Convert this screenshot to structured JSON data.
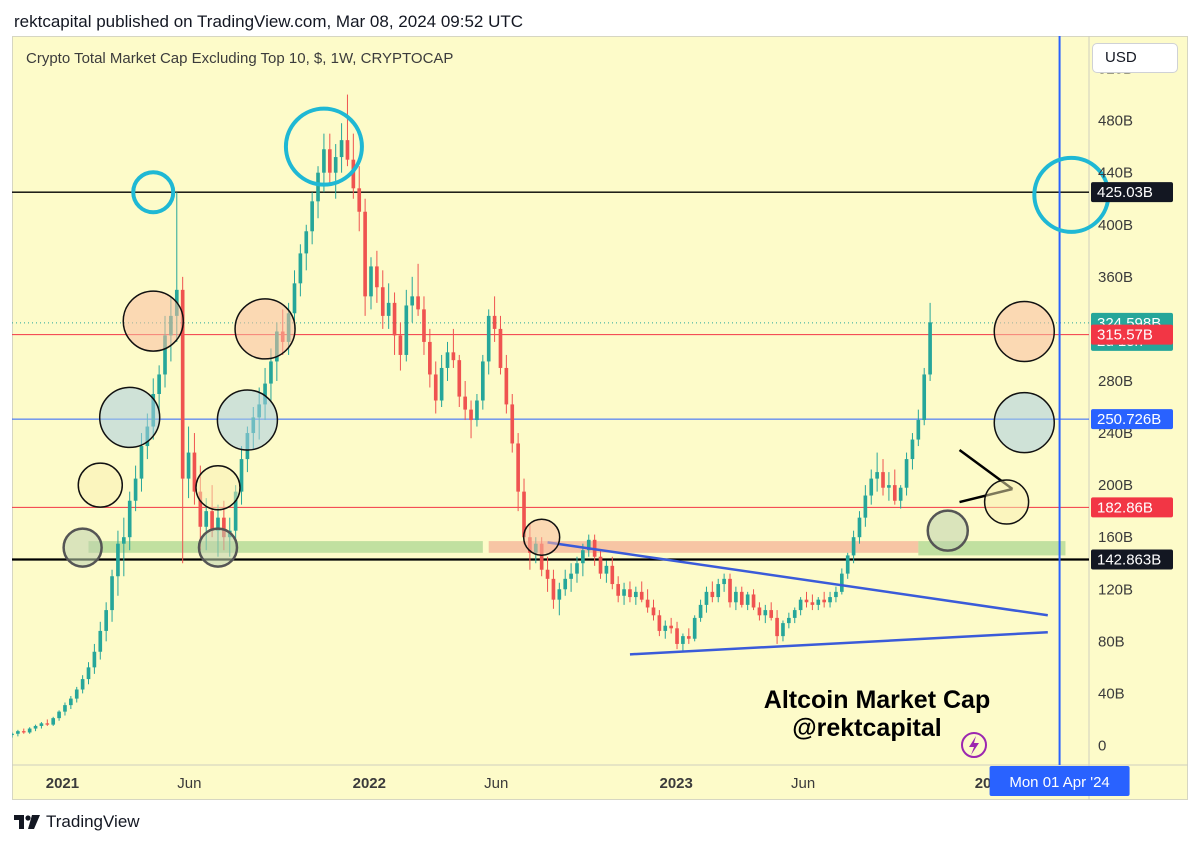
{
  "header": {
    "publish_line": "rektcapital published on TradingView.com, Mar 08, 2024 09:52 UTC"
  },
  "chart_title": "Crypto Total Market Cap Excluding Top 10, $, 1W, CRYPTOCAP",
  "currency_button": "USD",
  "footer": {
    "brand": "TradingView"
  },
  "annotation": {
    "line1": "Altcoin Market Cap",
    "line2": "@rektcapital"
  },
  "colors": {
    "background": "#fdfbc9",
    "up_candle": "#26a69a",
    "down_candle": "#ef5350",
    "price_label": "#26a69a",
    "red_level": "#f23645",
    "blue_level": "#2962ff",
    "black_level": "#000000",
    "circle_cyan": "#1fb8d4",
    "trendline": "#3a5bd9"
  },
  "chart_data": {
    "type": "candlestick",
    "title": "Crypto Total Market Cap Excluding Top 10, $, 1W, CRYPTOCAP",
    "y_unit": "B",
    "ylim": [
      -15,
      545
    ],
    "y_ticks": [
      0,
      40,
      80,
      120,
      160,
      200,
      240,
      280,
      320,
      360,
      400,
      440,
      480,
      520
    ],
    "y_tick_labels": [
      "0",
      "40B",
      "80B",
      "120B",
      "160B",
      "200B",
      "240B",
      "280B",
      "320B",
      "360B",
      "400B",
      "440B",
      "480B",
      "520B"
    ],
    "x_range": [
      "2020-11-02",
      "2024-05-06"
    ],
    "x_ticks": [
      {
        "date": "2021-01-01",
        "label": "2021",
        "bold": true
      },
      {
        "date": "2021-06-01",
        "label": "Jun",
        "bold": false
      },
      {
        "date": "2022-01-01",
        "label": "2022",
        "bold": true
      },
      {
        "date": "2022-06-01",
        "label": "Jun",
        "bold": false
      },
      {
        "date": "2023-01-01",
        "label": "2023",
        "bold": true
      },
      {
        "date": "2023-06-01",
        "label": "Jun",
        "bold": false
      },
      {
        "date": "2024-01-01",
        "label": "20",
        "bold": true
      }
    ],
    "crosshair_date": "2024-04-01",
    "crosshair_label": "Mon 01 Apr '24",
    "last_price": {
      "value": 324.598,
      "label": "324.598B",
      "countdown": "2d 15h"
    },
    "levels": [
      {
        "value": 425.03,
        "label": "425.03B",
        "color": "#000000",
        "width": 1.3
      },
      {
        "value": 315.57,
        "label": "315.57B",
        "color": "#f23645",
        "width": 1
      },
      {
        "value": 250.726,
        "label": "250.726B",
        "color": "#2962ff",
        "width": 1
      },
      {
        "value": 182.86,
        "label": "182.86B",
        "color": "#f23645",
        "width": 1
      },
      {
        "value": 142.863,
        "label": "142.863B",
        "color": "#000000",
        "width": 2.2
      }
    ],
    "zones": [
      {
        "from": "2021-02-01",
        "to": "2022-05-16",
        "low": 148,
        "high": 157,
        "color": "green"
      },
      {
        "from": "2022-05-23",
        "to": "2023-10-16",
        "low": 148,
        "high": 157,
        "color": "red"
      },
      {
        "from": "2023-10-16",
        "to": "2024-04-08",
        "low": 146,
        "high": 157,
        "color": "green"
      }
    ],
    "trendlines": [
      {
        "x1": "2022-08-01",
        "y1": 156,
        "x2": "2024-03-18",
        "y2": 100,
        "color": "#3a5bd9"
      },
      {
        "x1": "2022-11-07",
        "y1": 70,
        "x2": "2024-03-18",
        "y2": 87,
        "color": "#3a5bd9"
      },
      {
        "x1": "2023-12-04",
        "y1": 227,
        "x2": "2024-02-05",
        "y2": 197,
        "color": "#000000"
      },
      {
        "x1": "2023-12-04",
        "y1": 187,
        "x2": "2024-02-05",
        "y2": 197,
        "color": "#000000"
      }
    ],
    "circles": [
      {
        "date": "2021-04-19",
        "value": 425,
        "r": 20,
        "style": "cyan"
      },
      {
        "date": "2021-11-08",
        "value": 460,
        "r": 38,
        "style": "cyan"
      },
      {
        "date": "2024-04-15",
        "value": 423,
        "r": 37,
        "style": "cyan"
      },
      {
        "date": "2021-04-19",
        "value": 326,
        "r": 30,
        "style": "orange"
      },
      {
        "date": "2021-08-30",
        "value": 320,
        "r": 30,
        "style": "orange"
      },
      {
        "date": "2024-02-19",
        "value": 318,
        "r": 30,
        "style": "orange"
      },
      {
        "date": "2022-07-25",
        "value": 160,
        "r": 18,
        "style": "orange"
      },
      {
        "date": "2021-03-22",
        "value": 252,
        "r": 30,
        "style": "blue"
      },
      {
        "date": "2021-08-09",
        "value": 250,
        "r": 30,
        "style": "blue"
      },
      {
        "date": "2024-02-19",
        "value": 248,
        "r": 30,
        "style": "blue"
      },
      {
        "date": "2021-02-15",
        "value": 200,
        "r": 22,
        "style": "yellow"
      },
      {
        "date": "2021-07-05",
        "value": 198,
        "r": 22,
        "style": "yellow"
      },
      {
        "date": "2024-01-29",
        "value": 187,
        "r": 22,
        "style": "yellow"
      },
      {
        "date": "2021-01-25",
        "value": 152,
        "r": 19,
        "style": "gray"
      },
      {
        "date": "2021-07-05",
        "value": 152,
        "r": 19,
        "style": "gray"
      },
      {
        "date": "2023-11-20",
        "value": 165,
        "r": 20,
        "style": "gray"
      }
    ],
    "ohlc_start": "2020-11-02",
    "ohlc_interval_days": 7,
    "ohlc_columns": [
      "open",
      "high",
      "low",
      "close"
    ],
    "ohlc": [
      [
        8,
        10,
        6,
        9
      ],
      [
        9,
        12,
        7,
        11
      ],
      [
        11,
        13,
        9,
        10
      ],
      [
        10,
        14,
        9,
        13
      ],
      [
        13,
        16,
        11,
        15
      ],
      [
        15,
        18,
        13,
        17
      ],
      [
        17,
        20,
        15,
        16
      ],
      [
        16,
        22,
        15,
        21
      ],
      [
        21,
        27,
        19,
        26
      ],
      [
        26,
        33,
        23,
        31
      ],
      [
        31,
        38,
        28,
        36
      ],
      [
        36,
        45,
        33,
        43
      ],
      [
        43,
        54,
        40,
        51
      ],
      [
        51,
        64,
        47,
        60
      ],
      [
        60,
        78,
        55,
        72
      ],
      [
        72,
        95,
        66,
        88
      ],
      [
        88,
        110,
        80,
        104
      ],
      [
        104,
        135,
        95,
        130
      ],
      [
        130,
        165,
        115,
        155
      ],
      [
        155,
        175,
        130,
        160
      ],
      [
        160,
        195,
        150,
        188
      ],
      [
        188,
        215,
        180,
        205
      ],
      [
        205,
        240,
        195,
        230
      ],
      [
        230,
        255,
        220,
        245
      ],
      [
        245,
        282,
        235,
        270
      ],
      [
        270,
        292,
        255,
        285
      ],
      [
        285,
        330,
        275,
        315
      ],
      [
        315,
        345,
        295,
        330
      ],
      [
        330,
        425,
        310,
        350
      ],
      [
        350,
        360,
        140,
        205
      ],
      [
        205,
        245,
        190,
        225
      ],
      [
        225,
        240,
        185,
        195
      ],
      [
        195,
        215,
        150,
        168
      ],
      [
        168,
        190,
        150,
        180
      ],
      [
        180,
        200,
        160,
        165
      ],
      [
        165,
        185,
        145,
        175
      ],
      [
        175,
        188,
        150,
        160
      ],
      [
        160,
        175,
        145,
        165
      ],
      [
        165,
        200,
        155,
        195
      ],
      [
        195,
        230,
        185,
        220
      ],
      [
        220,
        245,
        210,
        240
      ],
      [
        240,
        260,
        228,
        252
      ],
      [
        252,
        275,
        235,
        262
      ],
      [
        262,
        290,
        250,
        278
      ],
      [
        278,
        305,
        265,
        295
      ],
      [
        295,
        325,
        280,
        318
      ],
      [
        318,
        335,
        300,
        310
      ],
      [
        310,
        340,
        300,
        332
      ],
      [
        332,
        365,
        320,
        355
      ],
      [
        355,
        385,
        345,
        378
      ],
      [
        378,
        400,
        365,
        395
      ],
      [
        395,
        425,
        385,
        418
      ],
      [
        418,
        445,
        405,
        440
      ],
      [
        440,
        470,
        425,
        458
      ],
      [
        458,
        470,
        430,
        440
      ],
      [
        440,
        462,
        420,
        452
      ],
      [
        452,
        478,
        440,
        465
      ],
      [
        465,
        500,
        445,
        450
      ],
      [
        450,
        470,
        420,
        428
      ],
      [
        428,
        445,
        395,
        410
      ],
      [
        410,
        420,
        330,
        345
      ],
      [
        345,
        375,
        335,
        368
      ],
      [
        368,
        380,
        340,
        352
      ],
      [
        352,
        365,
        320,
        330
      ],
      [
        330,
        355,
        320,
        340
      ],
      [
        340,
        348,
        300,
        315
      ],
      [
        315,
        325,
        288,
        300
      ],
      [
        300,
        350,
        295,
        338
      ],
      [
        338,
        360,
        325,
        345
      ],
      [
        345,
        370,
        330,
        335
      ],
      [
        335,
        345,
        300,
        310
      ],
      [
        310,
        320,
        275,
        285
      ],
      [
        285,
        295,
        255,
        265
      ],
      [
        265,
        300,
        260,
        290
      ],
      [
        290,
        310,
        280,
        302
      ],
      [
        302,
        320,
        290,
        296
      ],
      [
        296,
        300,
        260,
        268
      ],
      [
        268,
        280,
        250,
        258
      ],
      [
        258,
        265,
        236,
        250
      ],
      [
        250,
        270,
        245,
        265
      ],
      [
        265,
        300,
        258,
        295
      ],
      [
        295,
        335,
        285,
        330
      ],
      [
        330,
        345,
        310,
        320
      ],
      [
        320,
        330,
        285,
        290
      ],
      [
        290,
        300,
        255,
        262
      ],
      [
        262,
        270,
        225,
        232
      ],
      [
        232,
        240,
        180,
        195
      ],
      [
        195,
        205,
        155,
        160
      ],
      [
        160,
        170,
        135,
        148
      ],
      [
        148,
        160,
        140,
        155
      ],
      [
        155,
        160,
        130,
        135
      ],
      [
        135,
        145,
        118,
        128
      ],
      [
        128,
        135,
        105,
        112
      ],
      [
        112,
        125,
        100,
        120
      ],
      [
        120,
        135,
        115,
        128
      ],
      [
        128,
        140,
        118,
        132
      ],
      [
        132,
        145,
        125,
        140
      ],
      [
        140,
        155,
        130,
        150
      ],
      [
        150,
        162,
        145,
        158
      ],
      [
        158,
        162,
        138,
        145
      ],
      [
        145,
        150,
        128,
        132
      ],
      [
        132,
        142,
        125,
        138
      ],
      [
        138,
        145,
        120,
        124
      ],
      [
        124,
        130,
        110,
        115
      ],
      [
        115,
        125,
        108,
        120
      ],
      [
        120,
        126,
        110,
        114
      ],
      [
        114,
        122,
        108,
        118
      ],
      [
        118,
        126,
        110,
        112
      ],
      [
        112,
        120,
        102,
        106
      ],
      [
        106,
        112,
        96,
        100
      ],
      [
        100,
        104,
        84,
        88
      ],
      [
        88,
        96,
        82,
        92
      ],
      [
        92,
        98,
        86,
        90
      ],
      [
        90,
        95,
        74,
        78
      ],
      [
        78,
        86,
        72,
        84
      ],
      [
        84,
        90,
        78,
        82
      ],
      [
        82,
        100,
        80,
        98
      ],
      [
        98,
        112,
        95,
        108
      ],
      [
        108,
        122,
        102,
        118
      ],
      [
        118,
        126,
        110,
        114
      ],
      [
        114,
        128,
        110,
        124
      ],
      [
        124,
        132,
        118,
        128
      ],
      [
        128,
        132,
        106,
        110
      ],
      [
        110,
        122,
        104,
        118
      ],
      [
        118,
        122,
        106,
        108
      ],
      [
        108,
        118,
        104,
        116
      ],
      [
        116,
        120,
        104,
        106
      ],
      [
        106,
        110,
        96,
        100
      ],
      [
        100,
        108,
        94,
        104
      ],
      [
        104,
        110,
        96,
        98
      ],
      [
        98,
        104,
        78,
        84
      ],
      [
        84,
        96,
        80,
        94
      ],
      [
        94,
        102,
        90,
        98
      ],
      [
        98,
        106,
        94,
        104
      ],
      [
        104,
        114,
        100,
        112
      ],
      [
        112,
        118,
        106,
        110
      ],
      [
        110,
        116,
        104,
        108
      ],
      [
        108,
        114,
        104,
        112
      ],
      [
        112,
        118,
        106,
        110
      ],
      [
        110,
        118,
        106,
        114
      ],
      [
        114,
        122,
        110,
        118
      ],
      [
        118,
        136,
        116,
        132
      ],
      [
        132,
        148,
        128,
        146
      ],
      [
        146,
        165,
        140,
        160
      ],
      [
        160,
        180,
        155,
        175
      ],
      [
        175,
        200,
        168,
        192
      ],
      [
        192,
        212,
        185,
        205
      ],
      [
        205,
        225,
        195,
        210
      ],
      [
        210,
        220,
        192,
        198
      ],
      [
        198,
        210,
        188,
        200
      ],
      [
        200,
        212,
        185,
        188
      ],
      [
        188,
        200,
        182,
        198
      ],
      [
        198,
        225,
        192,
        220
      ],
      [
        220,
        240,
        212,
        235
      ],
      [
        235,
        258,
        230,
        250
      ],
      [
        250,
        290,
        246,
        285
      ],
      [
        285,
        340,
        280,
        325
      ]
    ]
  }
}
